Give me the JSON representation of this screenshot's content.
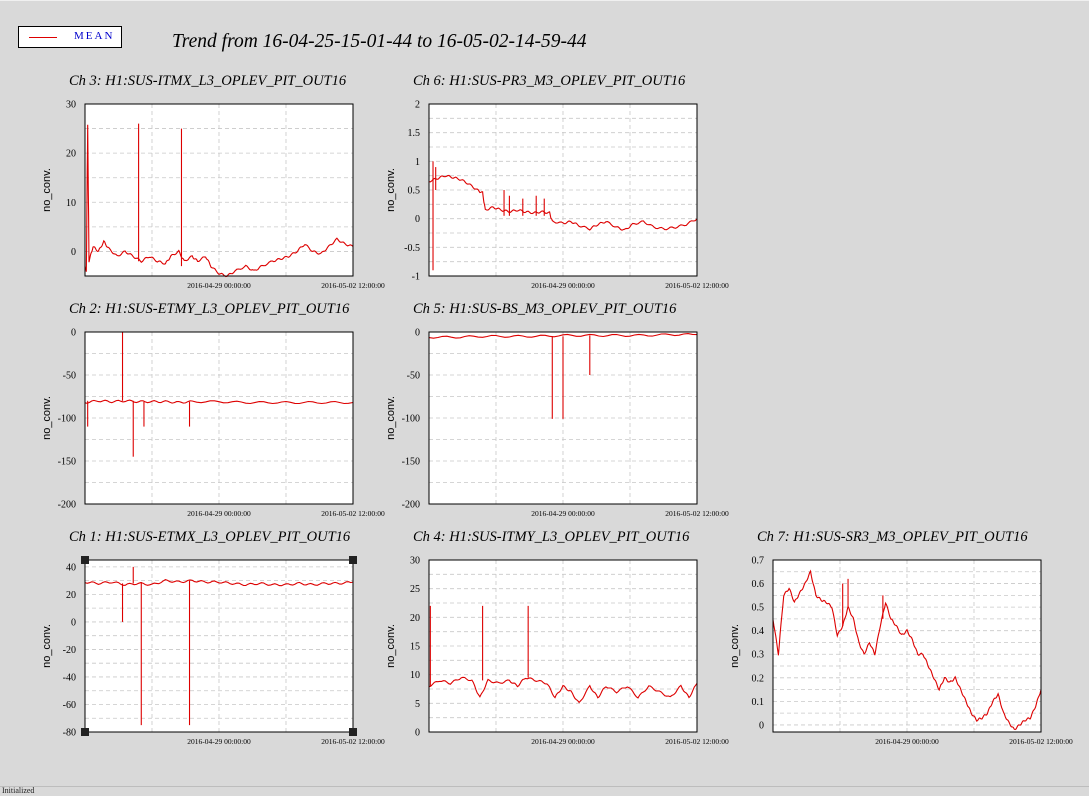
{
  "legend": {
    "label": "MEAN",
    "color": "#dd0000"
  },
  "title": "Trend from 16-04-25-15-01-44 to 16-05-02-14-59-44",
  "status_text": "Initialized",
  "chart_data": [
    {
      "type": "line",
      "title": "Ch 3: H1:SUS-ITMX_L3_OPLEV_PIT_OUT16",
      "ylabel": "no_conv.",
      "ylim": [
        -5,
        30
      ],
      "yticks": [
        0,
        10,
        20,
        30
      ],
      "xtick_labels": [
        "2016-04-29 00:00:00",
        "2016-05-02 12:00:00"
      ],
      "xtick_pos": [
        0.5,
        1.0
      ],
      "series": [
        {
          "color": "#dd0000",
          "points": [
            [
              0,
              -3
            ],
            [
              0.005,
              -4
            ],
            [
              0.01,
              26
            ],
            [
              0.015,
              -2
            ],
            [
              0.03,
              1
            ],
            [
              0.05,
              0
            ],
            [
              0.07,
              2
            ],
            [
              0.09,
              0.5
            ],
            [
              0.12,
              -1
            ],
            [
              0.15,
              0
            ],
            [
              0.18,
              -1
            ],
            [
              0.21,
              -2
            ],
            [
              0.24,
              -1
            ],
            [
              0.27,
              -2
            ],
            [
              0.3,
              -2.5
            ],
            [
              0.32,
              -1
            ],
            [
              0.35,
              0
            ],
            [
              0.37,
              -2
            ],
            [
              0.4,
              -1
            ],
            [
              0.42,
              -2
            ],
            [
              0.45,
              -1
            ],
            [
              0.47,
              -3
            ],
            [
              0.5,
              -4.5
            ],
            [
              0.53,
              -5
            ],
            [
              0.56,
              -4
            ],
            [
              0.6,
              -3
            ],
            [
              0.63,
              -4
            ],
            [
              0.66,
              -3
            ],
            [
              0.7,
              -2
            ],
            [
              0.73,
              -1.5
            ],
            [
              0.76,
              -1
            ],
            [
              0.79,
              0
            ],
            [
              0.82,
              1.5
            ],
            [
              0.85,
              0
            ],
            [
              0.88,
              -0.5
            ],
            [
              0.91,
              1
            ],
            [
              0.94,
              2.5
            ],
            [
              0.97,
              1.5
            ],
            [
              1.0,
              1
            ]
          ],
          "spikes": [
            [
              0.2,
              26,
              -2
            ],
            [
              0.36,
              25,
              -3
            ]
          ]
        }
      ]
    },
    {
      "type": "line",
      "title": "Ch 6: H1:SUS-PR3_M3_OPLEV_PIT_OUT16",
      "ylabel": "no_conv.",
      "ylim": [
        -1,
        2
      ],
      "yticks": [
        -1,
        -0.5,
        0,
        0.5,
        1,
        1.5,
        2
      ],
      "xtick_labels": [
        "2016-04-29 00:00:00",
        "2016-05-02 12:00:00"
      ],
      "xtick_pos": [
        0.5,
        1.0
      ],
      "series": [
        {
          "color": "#dd0000",
          "points": [
            [
              0,
              0.65
            ],
            [
              0.03,
              0.7
            ],
            [
              0.06,
              0.75
            ],
            [
              0.09,
              0.72
            ],
            [
              0.12,
              0.68
            ],
            [
              0.15,
              0.6
            ],
            [
              0.18,
              0.5
            ],
            [
              0.2,
              0.45
            ],
            [
              0.21,
              0.15
            ],
            [
              0.24,
              0.2
            ],
            [
              0.27,
              0.15
            ],
            [
              0.3,
              0.12
            ],
            [
              0.33,
              0.15
            ],
            [
              0.36,
              0.12
            ],
            [
              0.39,
              0.1
            ],
            [
              0.42,
              0.12
            ],
            [
              0.45,
              0.1
            ],
            [
              0.46,
              -0.05
            ],
            [
              0.5,
              -0.08
            ],
            [
              0.53,
              -0.05
            ],
            [
              0.56,
              -0.12
            ],
            [
              0.6,
              -0.18
            ],
            [
              0.63,
              -0.1
            ],
            [
              0.66,
              -0.05
            ],
            [
              0.7,
              -0.15
            ],
            [
              0.73,
              -0.2
            ],
            [
              0.76,
              -0.1
            ],
            [
              0.8,
              -0.05
            ],
            [
              0.84,
              -0.15
            ],
            [
              0.88,
              -0.18
            ],
            [
              0.92,
              -0.15
            ],
            [
              0.96,
              -0.1
            ],
            [
              1.0,
              0
            ]
          ],
          "spikes": [
            [
              0.015,
              -0.9,
              1.0
            ],
            [
              0.025,
              0.5,
              0.9
            ],
            [
              0.28,
              0.5,
              0.05
            ],
            [
              0.3,
              0.4,
              0.05
            ],
            [
              0.35,
              0.35,
              0.05
            ],
            [
              0.4,
              0.4,
              0.05
            ],
            [
              0.43,
              0.35,
              0.05
            ]
          ]
        }
      ]
    },
    {
      "type": "line",
      "title": "Ch 2: H1:SUS-ETMY_L3_OPLEV_PIT_OUT16",
      "ylabel": "no_conv.",
      "ylim": [
        -200,
        0
      ],
      "yticks": [
        -200,
        -150,
        -100,
        -50,
        0
      ],
      "xtick_labels": [
        "2016-04-29 00:00:00",
        "2016-05-02 12:00:00"
      ],
      "xtick_pos": [
        0.5,
        1.0
      ],
      "series": [
        {
          "color": "#dd0000",
          "points": [
            [
              0,
              -82
            ],
            [
              0.05,
              -80
            ],
            [
              0.1,
              -81
            ],
            [
              0.15,
              -80
            ],
            [
              0.2,
              -81
            ],
            [
              0.25,
              -81
            ],
            [
              0.3,
              -81
            ],
            [
              0.35,
              -82
            ],
            [
              0.4,
              -81
            ],
            [
              0.5,
              -81
            ],
            [
              0.6,
              -82
            ],
            [
              0.7,
              -82
            ],
            [
              0.8,
              -82
            ],
            [
              0.9,
              -82
            ],
            [
              1.0,
              -82
            ]
          ],
          "spikes": [
            [
              0.01,
              -110,
              -80
            ],
            [
              0.14,
              0,
              -80
            ],
            [
              0.18,
              -145,
              -80
            ],
            [
              0.22,
              -110,
              -81
            ],
            [
              0.39,
              -110,
              -81
            ]
          ]
        }
      ]
    },
    {
      "type": "line",
      "title": "Ch 5: H1:SUS-BS_M3_OPLEV_PIT_OUT16",
      "ylabel": "no_conv.",
      "ylim": [
        -200,
        0
      ],
      "yticks": [
        -200,
        -150,
        -100,
        -50,
        0
      ],
      "xtick_labels": [
        "2016-04-29 00:00:00",
        "2016-05-02 12:00:00"
      ],
      "xtick_pos": [
        0.5,
        1.0
      ],
      "series": [
        {
          "color": "#dd0000",
          "points": [
            [
              0,
              -6
            ],
            [
              0.1,
              -6
            ],
            [
              0.2,
              -5
            ],
            [
              0.3,
              -5
            ],
            [
              0.4,
              -5
            ],
            [
              0.5,
              -4
            ],
            [
              0.6,
              -4
            ],
            [
              0.7,
              -4
            ],
            [
              0.8,
              -4
            ],
            [
              0.9,
              -3
            ],
            [
              1.0,
              -3
            ]
          ],
          "spikes": [
            [
              0.46,
              -101,
              -5
            ],
            [
              0.48,
              -5,
              -5
            ],
            [
              0.5,
              -101,
              -5
            ],
            [
              0.6,
              -50,
              -4
            ]
          ]
        }
      ]
    },
    {
      "type": "line",
      "title": "Ch 1: H1:SUS-ETMX_L3_OPLEV_PIT_OUT16",
      "ylabel": "no_conv.",
      "ylim": [
        -80,
        45
      ],
      "yticks": [
        -80,
        -60,
        -40,
        -20,
        0,
        20,
        40
      ],
      "xtick_labels": [
        "2016-04-29 00:00:00",
        "2016-05-02 12:00:00"
      ],
      "xtick_pos": [
        0.5,
        1.0
      ],
      "series": [
        {
          "color": "#dd0000",
          "points": [
            [
              0,
              29
            ],
            [
              0.05,
              28
            ],
            [
              0.1,
              29
            ],
            [
              0.15,
              27
            ],
            [
              0.2,
              28
            ],
            [
              0.25,
              27
            ],
            [
              0.3,
              30
            ],
            [
              0.35,
              29
            ],
            [
              0.4,
              30
            ],
            [
              0.45,
              29
            ],
            [
              0.5,
              29
            ],
            [
              0.55,
              28
            ],
            [
              0.6,
              27
            ],
            [
              0.65,
              28
            ],
            [
              0.7,
              27
            ],
            [
              0.75,
              27
            ],
            [
              0.8,
              28
            ],
            [
              0.85,
              27
            ],
            [
              0.9,
              28
            ],
            [
              0.95,
              28
            ],
            [
              1.0,
              29
            ]
          ],
          "spikes": [
            [
              0.14,
              0,
              28
            ],
            [
              0.18,
              40,
              28
            ],
            [
              0.21,
              -75,
              29
            ],
            [
              0.39,
              -75,
              30
            ]
          ]
        }
      ]
    },
    {
      "type": "line",
      "title": "Ch 4: H1:SUS-ITMY_L3_OPLEV_PIT_OUT16",
      "ylabel": "no_conv.",
      "ylim": [
        0,
        30
      ],
      "yticks": [
        0,
        5,
        10,
        15,
        20,
        25,
        30
      ],
      "xtick_labels": [
        "2016-04-29 00:00:00",
        "2016-05-02 12:00:00"
      ],
      "xtick_pos": [
        0.5,
        1.0
      ],
      "series": [
        {
          "color": "#dd0000",
          "points": [
            [
              0,
              8
            ],
            [
              0.04,
              9
            ],
            [
              0.08,
              8.5
            ],
            [
              0.12,
              9.5
            ],
            [
              0.16,
              9
            ],
            [
              0.19,
              6
            ],
            [
              0.22,
              9
            ],
            [
              0.26,
              8.5
            ],
            [
              0.3,
              9
            ],
            [
              0.33,
              8
            ],
            [
              0.36,
              9.5
            ],
            [
              0.4,
              9
            ],
            [
              0.44,
              8.5
            ],
            [
              0.47,
              6
            ],
            [
              0.5,
              8
            ],
            [
              0.53,
              7
            ],
            [
              0.56,
              5
            ],
            [
              0.6,
              8
            ],
            [
              0.63,
              6
            ],
            [
              0.66,
              8
            ],
            [
              0.7,
              7
            ],
            [
              0.74,
              8
            ],
            [
              0.78,
              6
            ],
            [
              0.82,
              8
            ],
            [
              0.86,
              7
            ],
            [
              0.9,
              6
            ],
            [
              0.94,
              8
            ],
            [
              0.97,
              6
            ],
            [
              1.0,
              8.5
            ]
          ],
          "spikes": [
            [
              0.005,
              22,
              8
            ],
            [
              0.2,
              22,
              9
            ],
            [
              0.37,
              22,
              9.5
            ]
          ]
        }
      ]
    },
    {
      "type": "line",
      "title": "Ch 7: H1:SUS-SR3_M3_OPLEV_PIT_OUT16",
      "ylabel": "no_conv.",
      "ylim": [
        -0.03,
        0.7
      ],
      "yticks": [
        0,
        0.1,
        0.2,
        0.3,
        0.4,
        0.5,
        0.6,
        0.7
      ],
      "xtick_labels": [
        "2016-04-29 00:00:00",
        "2016-05-02 12:00:00"
      ],
      "xtick_pos": [
        0.5,
        1.0
      ],
      "series": [
        {
          "color": "#dd0000",
          "points": [
            [
              0,
              0.45
            ],
            [
              0.02,
              0.3
            ],
            [
              0.04,
              0.55
            ],
            [
              0.06,
              0.58
            ],
            [
              0.08,
              0.52
            ],
            [
              0.1,
              0.56
            ],
            [
              0.12,
              0.6
            ],
            [
              0.14,
              0.65
            ],
            [
              0.16,
              0.55
            ],
            [
              0.18,
              0.53
            ],
            [
              0.2,
              0.52
            ],
            [
              0.22,
              0.5
            ],
            [
              0.24,
              0.38
            ],
            [
              0.26,
              0.42
            ],
            [
              0.28,
              0.5
            ],
            [
              0.3,
              0.45
            ],
            [
              0.32,
              0.35
            ],
            [
              0.34,
              0.3
            ],
            [
              0.36,
              0.35
            ],
            [
              0.38,
              0.3
            ],
            [
              0.4,
              0.42
            ],
            [
              0.42,
              0.52
            ],
            [
              0.44,
              0.45
            ],
            [
              0.46,
              0.42
            ],
            [
              0.48,
              0.38
            ],
            [
              0.5,
              0.4
            ],
            [
              0.52,
              0.36
            ],
            [
              0.54,
              0.3
            ],
            [
              0.56,
              0.3
            ],
            [
              0.58,
              0.25
            ],
            [
              0.6,
              0.2
            ],
            [
              0.62,
              0.15
            ],
            [
              0.64,
              0.2
            ],
            [
              0.66,
              0.18
            ],
            [
              0.68,
              0.2
            ],
            [
              0.7,
              0.15
            ],
            [
              0.72,
              0.1
            ],
            [
              0.74,
              0.05
            ],
            [
              0.76,
              0.02
            ],
            [
              0.78,
              0.03
            ],
            [
              0.8,
              0.05
            ],
            [
              0.82,
              0.1
            ],
            [
              0.84,
              0.13
            ],
            [
              0.86,
              0.05
            ],
            [
              0.88,
              0.01
            ],
            [
              0.9,
              -0.02
            ],
            [
              0.92,
              0.0
            ],
            [
              0.94,
              0.02
            ],
            [
              0.96,
              0.03
            ],
            [
              0.98,
              0.08
            ],
            [
              1.0,
              0.15
            ]
          ],
          "spikes": [
            [
              0.26,
              0.6,
              0.42
            ],
            [
              0.28,
              0.62,
              0.5
            ],
            [
              0.41,
              0.55,
              0.45
            ]
          ]
        }
      ]
    }
  ]
}
